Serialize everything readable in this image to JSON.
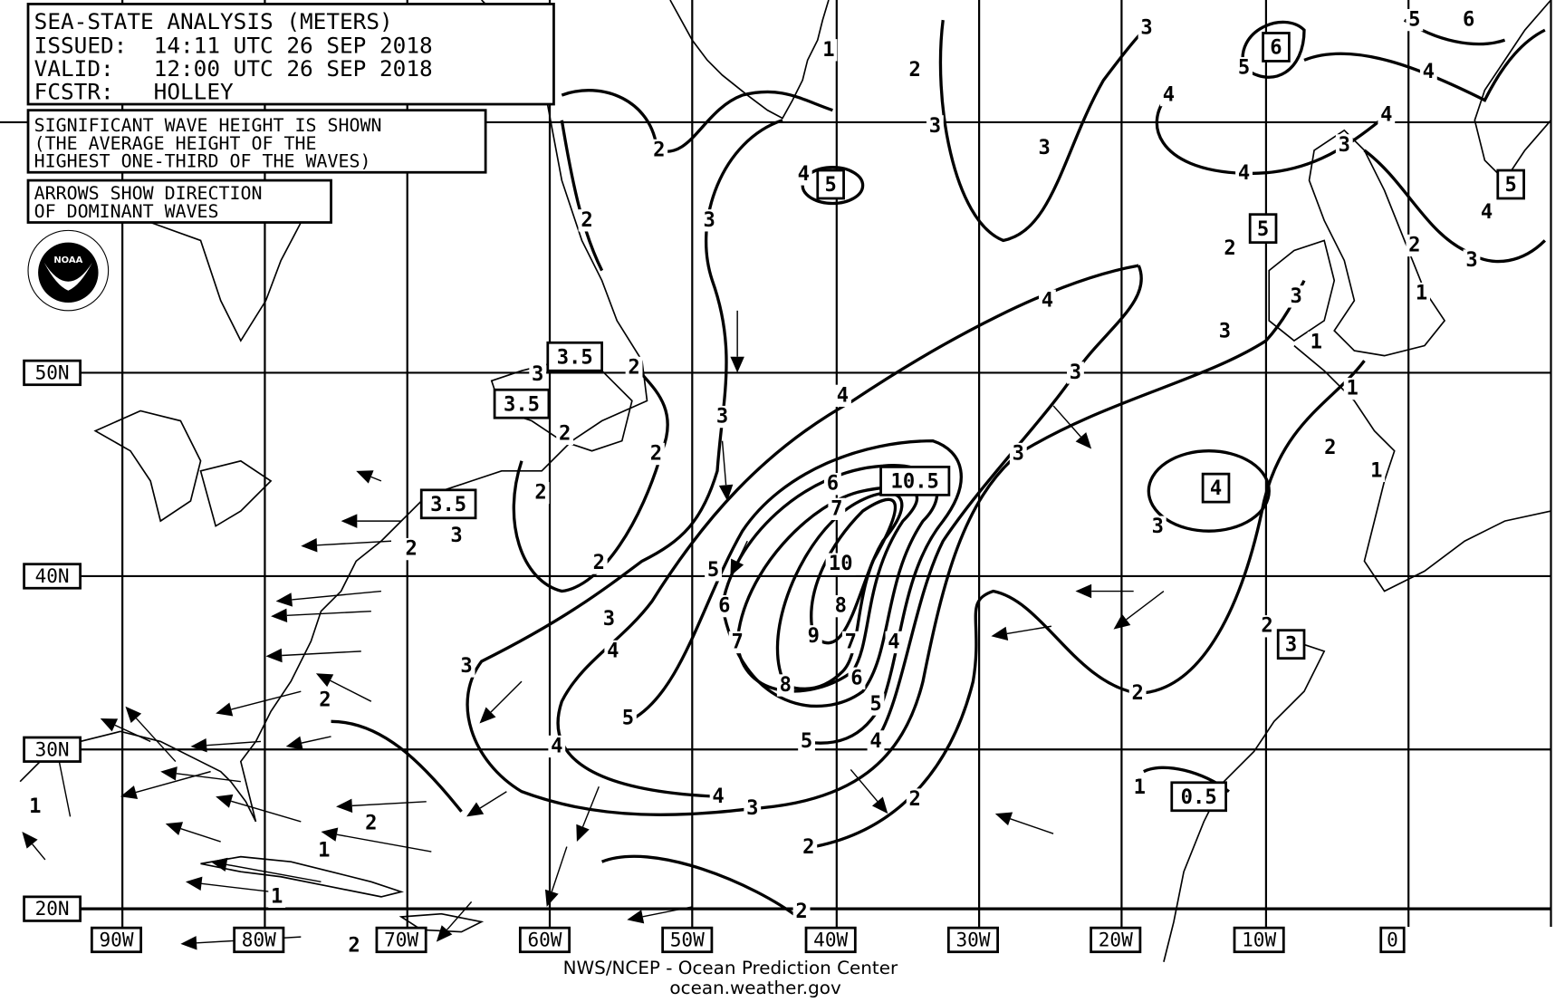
{
  "header": {
    "title": "SEA-STATE ANALYSIS (METERS)",
    "issued": "ISSUED:  14:11 UTC 26 SEP 2018",
    "valid": "VALID:   12:00 UTC 26 SEP 2018",
    "forecaster": "FCSTR:   HOLLEY"
  },
  "notes": {
    "wave_height": [
      "SIGNIFICANT WAVE HEIGHT IS SHOWN",
      "(THE AVERAGE HEIGHT OF THE",
      "HIGHEST ONE-THIRD OF THE WAVES)"
    ],
    "arrows": [
      "ARROWS SHOW DIRECTION",
      "OF DOMINANT WAVES"
    ]
  },
  "logo": {
    "text": "NOAA",
    "ring": "NATIONAL OCEANIC AND ATMOSPHERIC ADMINISTRATION U.S. DEPARTMENT OF COMMERCE"
  },
  "latitude_labels": [
    "50N",
    "40N",
    "30N",
    "20N"
  ],
  "longitude_labels": [
    "90W",
    "80W",
    "70W",
    "60W",
    "50W",
    "40W",
    "30W",
    "20W",
    "10W",
    "0"
  ],
  "contour_labels": [
    "1",
    "2",
    "3",
    "5",
    "6",
    "4",
    "4",
    "2",
    "3",
    "3",
    "4",
    "3",
    "4",
    "4",
    "2",
    "3",
    "1",
    "4",
    "3",
    "1",
    "3",
    "2",
    "4",
    "3",
    "5",
    "2",
    "3",
    "2",
    "1",
    "6",
    "2",
    "3",
    "7",
    "4",
    "3",
    "2",
    "2",
    "5",
    "10",
    "8",
    "6",
    "3",
    "9",
    "7",
    "4",
    "7",
    "2",
    "4",
    "3",
    "6",
    "8",
    "2",
    "2",
    "5",
    "5",
    "5",
    "4",
    "4",
    "4",
    "3",
    "2",
    "1",
    "2",
    "1",
    "2",
    "1",
    "1",
    "2",
    "1",
    "2",
    "3",
    "2",
    "3",
    "3",
    "2",
    "2"
  ],
  "boxed_labels": [
    "6",
    "5",
    "5",
    "5",
    "3.5",
    "3.5",
    "10.5",
    "4",
    "3.5",
    "3",
    "0.5"
  ],
  "footer": {
    "line1": "NWS/NCEP - Ocean Prediction Center",
    "line2": "ocean.weather.gov"
  },
  "colors": {
    "ink": "#000000",
    "background": "#ffffff"
  }
}
